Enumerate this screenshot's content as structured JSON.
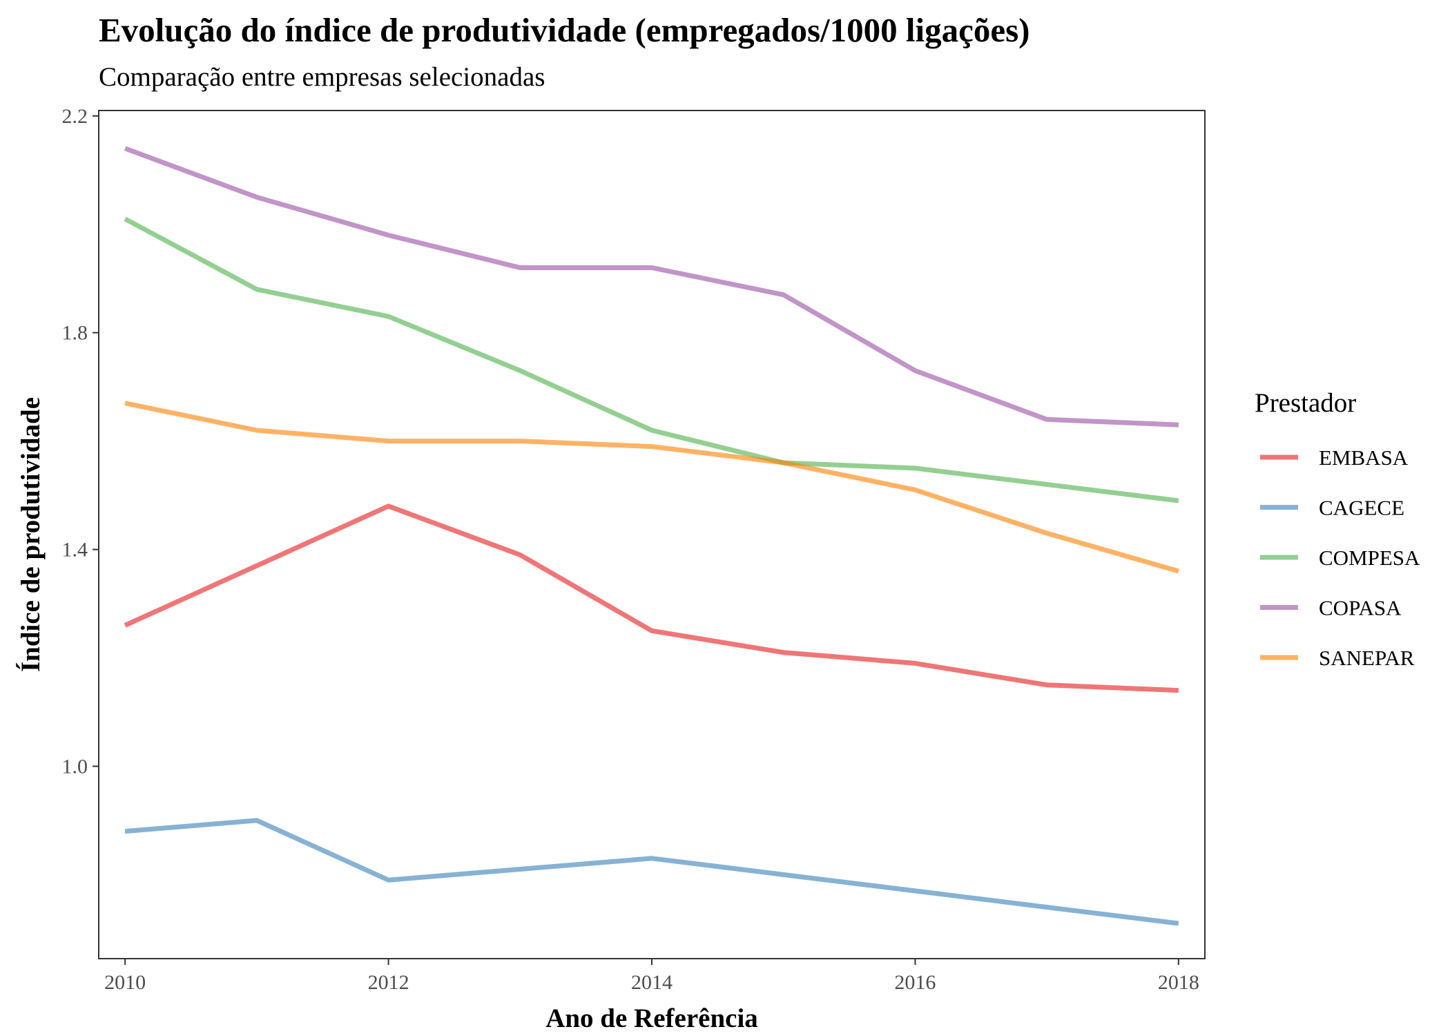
{
  "chart_data": {
    "type": "line",
    "title": "Evolução do índice de produtividade (empregados/1000 ligações)",
    "subtitle": "Comparação entre empresas selecionadas",
    "xlabel": "Ano de Referência",
    "ylabel": "Índice de produtividade",
    "x": [
      2010,
      2011,
      2012,
      2013,
      2014,
      2015,
      2016,
      2017,
      2018
    ],
    "xlim": [
      2009.8,
      2018.2
    ],
    "ylim": [
      0.645,
      2.21
    ],
    "xticks": [
      2010,
      2012,
      2014,
      2016,
      2018
    ],
    "yticks": [
      1.0,
      1.4,
      1.8,
      2.2
    ],
    "ytick_labels": [
      "1.0",
      "1.4",
      "1.8",
      "2.2"
    ],
    "grid": false,
    "legend": {
      "title": "Prestador",
      "position": "right"
    },
    "series": [
      {
        "name": "EMBASA",
        "color": "#e41a1c",
        "values": [
          1.26,
          1.37,
          1.48,
          1.39,
          1.25,
          1.21,
          1.19,
          1.15,
          1.14
        ]
      },
      {
        "name": "CAGECE",
        "color": "#377eb8",
        "values": [
          0.88,
          0.9,
          0.79,
          0.81,
          0.83,
          0.8,
          0.77,
          0.74,
          0.71
        ]
      },
      {
        "name": "COMPESA",
        "color": "#4daf4a",
        "values": [
          2.01,
          1.88,
          1.83,
          1.73,
          1.62,
          1.56,
          1.55,
          1.52,
          1.49
        ]
      },
      {
        "name": "COPASA",
        "color": "#984ea3",
        "values": [
          2.14,
          2.05,
          1.98,
          1.92,
          1.92,
          1.87,
          1.73,
          1.64,
          1.63
        ]
      },
      {
        "name": "SANEPAR",
        "color": "#ff7f00",
        "values": [
          1.67,
          1.62,
          1.6,
          1.6,
          1.59,
          1.56,
          1.51,
          1.43,
          1.36
        ]
      }
    ]
  }
}
